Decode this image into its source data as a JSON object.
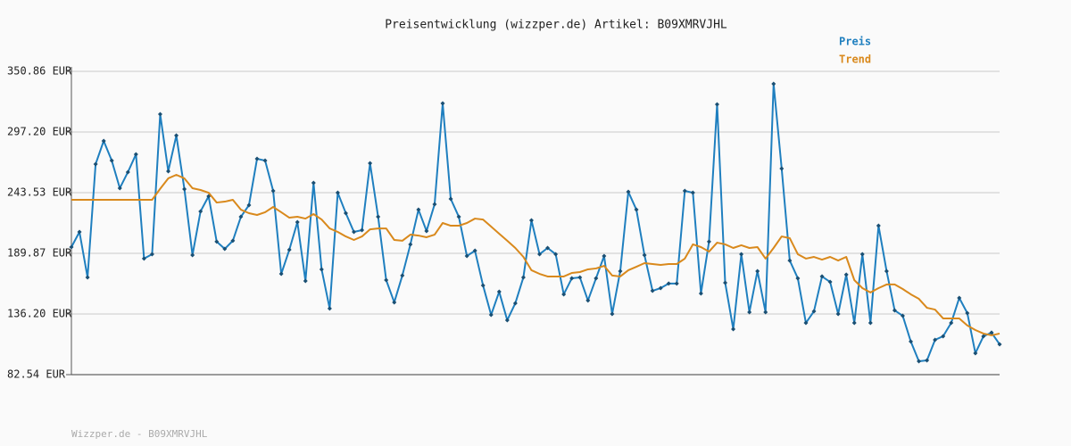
{
  "chart_data": {
    "type": "line",
    "title": "Preisentwicklung (wizzper.de) Artikel: B09XMRVJHL",
    "footer": "Wizzper.de - B09XMRVJHL",
    "ylim": [
      82.54,
      350.86
    ],
    "yticks": [
      {
        "value": 350.86,
        "label": "350.86 EUR"
      },
      {
        "value": 297.2,
        "label": "297.20 EUR"
      },
      {
        "value": 243.53,
        "label": "243.53 EUR"
      },
      {
        "value": 189.87,
        "label": "189.87 EUR"
      },
      {
        "value": 136.2,
        "label": "136.20 EUR"
      },
      {
        "value": 82.54,
        "label": "82.54 EUR"
      }
    ],
    "grid": true,
    "legend": "top-right",
    "series": [
      {
        "name": "Preis",
        "color": "#1f7fbf",
        "markers": true,
        "values": [
          195.4,
          208.8,
          168.6,
          268.8,
          289.3,
          271.9,
          247.5,
          261.7,
          277.5,
          185.2,
          189.1,
          313.0,
          262.5,
          294.1,
          246.7,
          188.3,
          227.0,
          240.4,
          200.2,
          193.8,
          201.0,
          222.2,
          232.5,
          273.5,
          271.9,
          245.1,
          171.7,
          193.0,
          217.5,
          165.4,
          252.2,
          175.7,
          141.0,
          243.5,
          225.4,
          208.8,
          210.4,
          269.6,
          222.2,
          166.2,
          146.5,
          170.2,
          197.8,
          228.5,
          209.6,
          233.3,
          322.5,
          238.0,
          222.2,
          187.5,
          192.2,
          161.5,
          135.4,
          155.9,
          130.7,
          145.7,
          168.6,
          219.1,
          189.1,
          194.6,
          189.1,
          153.6,
          167.8,
          168.6,
          148.1,
          167.8,
          187.5,
          136.2,
          174.1,
          244.3,
          228.5,
          188.3,
          156.7,
          159.1,
          163.1,
          163.1,
          245.1,
          243.5,
          154.4,
          200.2,
          321.7,
          163.8,
          122.8,
          189.1,
          137.8,
          174.1,
          137.8,
          339.8,
          264.8,
          183.5,
          167.8,
          128.3,
          138.6,
          169.4,
          164.6,
          136.2,
          171.0,
          128.3,
          189.1,
          128.3,
          214.3,
          174.1,
          139.4,
          134.6,
          111.8,
          94.4,
          95.2,
          113.3,
          116.5,
          128.3,
          150.4,
          137.0,
          101.5,
          116.5,
          119.7,
          109.4
        ]
      },
      {
        "name": "Trend",
        "color": "#d9891c",
        "markers": false,
        "values": [
          237.2,
          237.2,
          237.2,
          237.2,
          237.2,
          237.2,
          237.2,
          237.2,
          237.2,
          237.2,
          237.2,
          247.0,
          256.2,
          259.3,
          256.2,
          247.5,
          245.9,
          243.5,
          234.8,
          235.6,
          237.2,
          228.5,
          225.4,
          223.8,
          226.2,
          230.9,
          226.2,
          221.4,
          222.2,
          220.6,
          224.6,
          219.8,
          211.9,
          208.8,
          204.8,
          201.7,
          204.8,
          211.1,
          211.9,
          211.9,
          201.7,
          201.0,
          206.4,
          205.6,
          204.1,
          206.4,
          216.7,
          214.3,
          214.3,
          216.7,
          220.6,
          219.8,
          213.5,
          207.2,
          201.0,
          194.6,
          186.7,
          174.9,
          171.7,
          169.4,
          169.4,
          169.4,
          172.5,
          173.3,
          175.7,
          176.5,
          178.8,
          170.2,
          169.4,
          174.9,
          178.0,
          181.2,
          180.4,
          179.6,
          180.4,
          180.4,
          185.2,
          197.8,
          195.4,
          191.4,
          199.3,
          197.8,
          194.6,
          197.0,
          194.6,
          195.4,
          185.2,
          194.6,
          204.8,
          203.3,
          189.1,
          185.2,
          186.7,
          184.3,
          186.7,
          183.5,
          186.7,
          166.2,
          159.1,
          155.2,
          159.1,
          162.3,
          162.3,
          158.3,
          153.6,
          149.6,
          141.7,
          140.1,
          132.3,
          132.3,
          132.3,
          126.0,
          122.0,
          118.9,
          117.3,
          118.9
        ]
      }
    ]
  }
}
